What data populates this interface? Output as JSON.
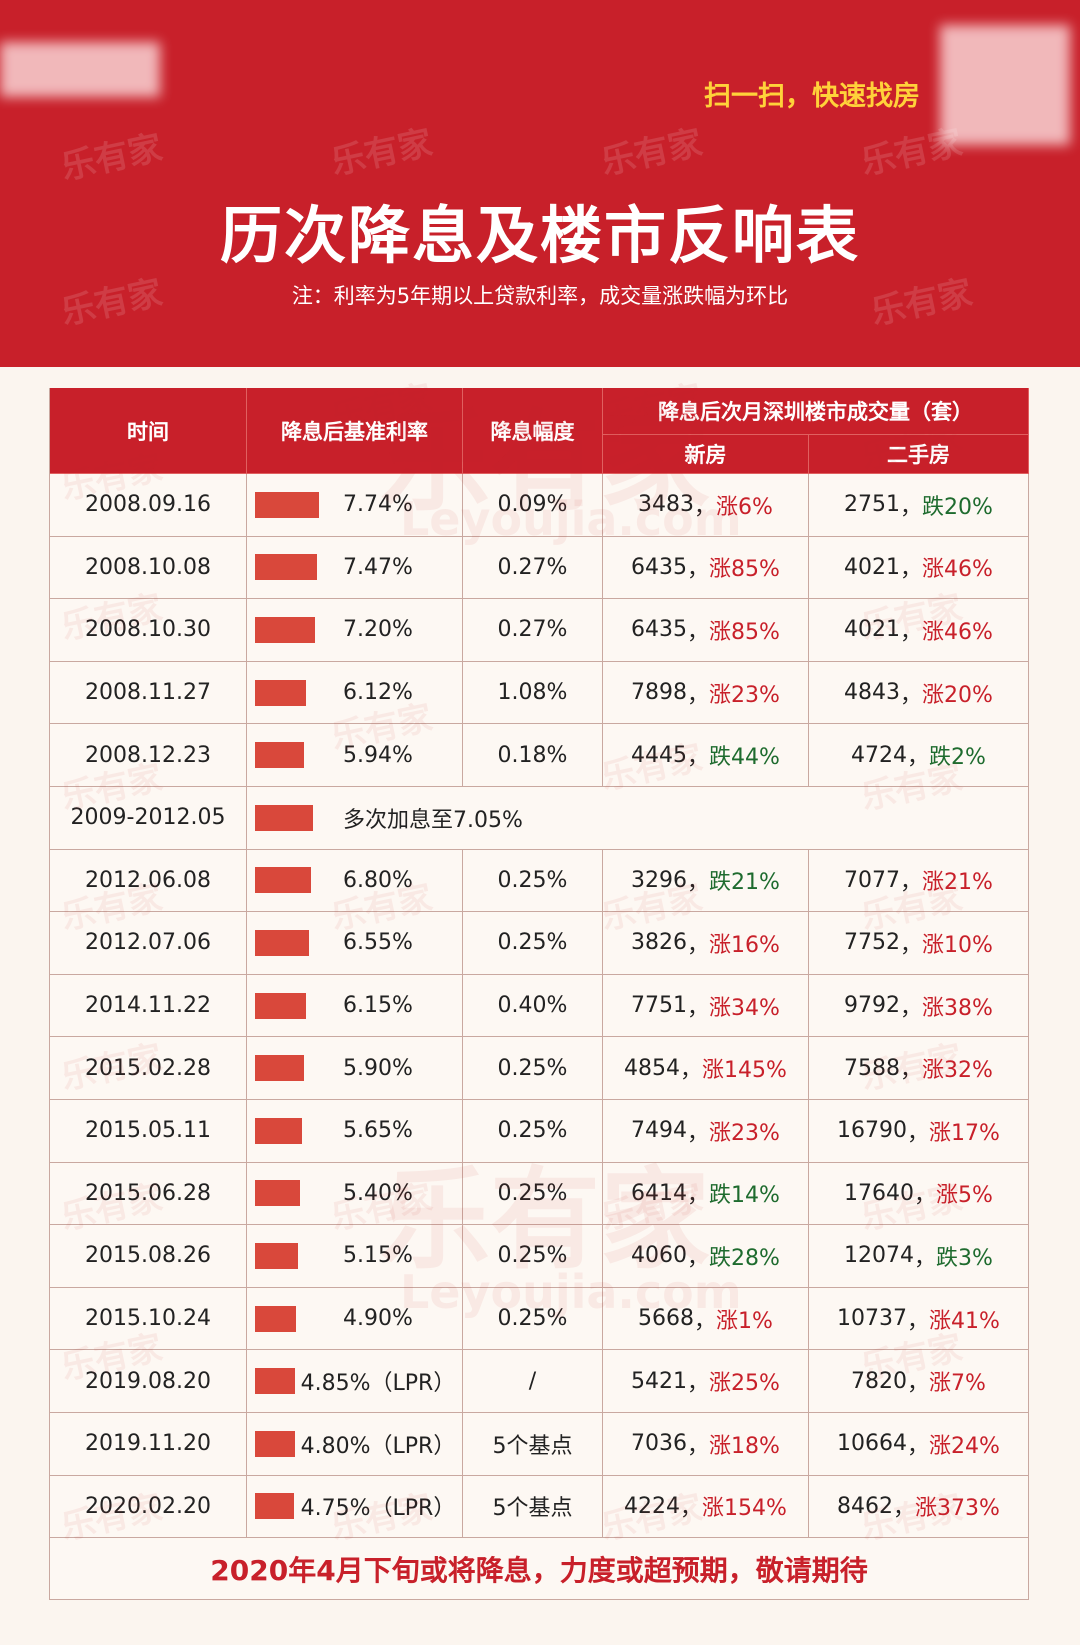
{
  "header": {
    "cta": "扫一扫，快速找房",
    "title": "历次降息及楼市反响表",
    "note": "注：利率为5年期以上贷款利率，成交量涨跌幅为环比"
  },
  "watermark": {
    "brand": "乐有家",
    "site": "Leyoujia.com"
  },
  "table": {
    "headers": {
      "time": "时间",
      "rate": "降息后基准利率",
      "cut": "降息幅度",
      "volume": "降息后次月深圳楼市成交量（套）",
      "new": "新房",
      "second": "二手房"
    },
    "sep": "，",
    "rows": [
      {
        "date": "2008.09.16",
        "rate": "7.74%",
        "cut": "0.09%",
        "new": "3483",
        "new_change": "涨6%",
        "second": "2751",
        "second_change": "跌20%"
      },
      {
        "date": "2008.10.08",
        "rate": "7.47%",
        "cut": "0.27%",
        "new": "6435",
        "new_change": "涨85%",
        "second": "4021",
        "second_change": "涨46%"
      },
      {
        "date": "2008.10.30",
        "rate": "7.20%",
        "cut": "0.27%",
        "new": "6435",
        "new_change": "涨85%",
        "second": "4021",
        "second_change": "涨46%"
      },
      {
        "date": "2008.11.27",
        "rate": "6.12%",
        "cut": "1.08%",
        "new": "7898",
        "new_change": "涨23%",
        "second": "4843",
        "second_change": "涨20%"
      },
      {
        "date": "2008.12.23",
        "rate": "5.94%",
        "cut": "0.18%",
        "new": "4445",
        "new_change": "跌44%",
        "second": "4724",
        "second_change": "跌2%"
      },
      {
        "date": "2009-2012.05",
        "note": "多次加息至7.05%"
      },
      {
        "date": "2012.06.08",
        "rate": "6.80%",
        "cut": "0.25%",
        "new": "3296",
        "new_change": "跌21%",
        "second": "7077",
        "second_change": "涨21%"
      },
      {
        "date": "2012.07.06",
        "rate": "6.55%",
        "cut": "0.25%",
        "new": "3826",
        "new_change": "涨16%",
        "second": "7752",
        "second_change": "涨10%"
      },
      {
        "date": "2014.11.22",
        "rate": "6.15%",
        "cut": "0.40%",
        "new": "7751",
        "new_change": "涨34%",
        "second": "9792",
        "second_change": "涨38%"
      },
      {
        "date": "2015.02.28",
        "rate": "5.90%",
        "cut": "0.25%",
        "new": "4854",
        "new_change": "涨145%",
        "second": "7588",
        "second_change": "涨32%"
      },
      {
        "date": "2015.05.11",
        "rate": "5.65%",
        "cut": "0.25%",
        "new": "7494",
        "new_change": "涨23%",
        "second": "16790",
        "second_change": "涨17%"
      },
      {
        "date": "2015.06.28",
        "rate": "5.40%",
        "cut": "0.25%",
        "new": "6414",
        "new_change": "跌14%",
        "second": "17640",
        "second_change": "涨5%"
      },
      {
        "date": "2015.08.26",
        "rate": "5.15%",
        "cut": "0.25%",
        "new": "4060",
        "new_change": "跌28%",
        "second": "12074",
        "second_change": "跌3%"
      },
      {
        "date": "2015.10.24",
        "rate": "4.90%",
        "cut": "0.25%",
        "new": "5668",
        "new_change": "涨1%",
        "second": "10737",
        "second_change": "涨41%"
      },
      {
        "date": "2019.08.20",
        "rate": "4.85%（LPR）",
        "cut": "/",
        "new": "5421",
        "new_change": "涨25%",
        "second": "7820",
        "second_change": "涨7%"
      },
      {
        "date": "2019.11.20",
        "rate": "4.80%（LPR）",
        "cut": "5个基点",
        "new": "7036",
        "new_change": "涨18%",
        "second": "10664",
        "second_change": "涨24%"
      },
      {
        "date": "2020.02.20",
        "rate": "4.75%（LPR）",
        "cut": "5个基点",
        "new": "4224",
        "new_change": "涨154%",
        "second": "8462",
        "second_change": "涨373%"
      }
    ],
    "footer": "2020年4月下旬或将降息，力度或超预期，敬请期待"
  }
}
